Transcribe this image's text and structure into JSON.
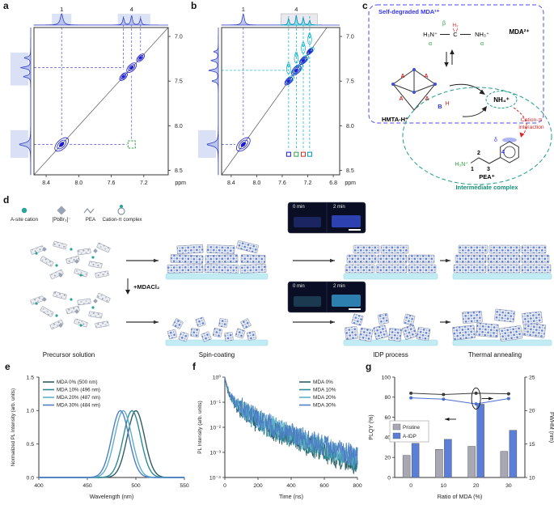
{
  "panel_labels": {
    "a": "a",
    "b": "b",
    "c": "c",
    "d": "d",
    "e": "e",
    "f": "f",
    "g": "g"
  },
  "nmr": {
    "a": {
      "xticks": [
        "8.4",
        "8.0",
        "7.6",
        "7.2"
      ],
      "yticks": [
        "7.0",
        "7.5",
        "8.0",
        "8.5"
      ],
      "unit": "ppm",
      "peak1": "1",
      "peak4": "4",
      "peak1_ppm": 8.21,
      "peak4_ppm": 7.35,
      "xrange": [
        8.55,
        6.9
      ],
      "yrange": [
        6.9,
        8.55
      ],
      "diagonal_peaks_ppm": [
        8.21,
        7.45,
        7.35,
        7.24
      ],
      "aromatic_ppm": [
        7.45,
        7.35,
        7.24
      ],
      "cross_peak": {
        "x_ppm": 7.35,
        "y_ppm": 8.21
      }
    },
    "b": {
      "xticks": [
        "8.4",
        "8.0",
        "7.6",
        "7.2",
        "6.8"
      ],
      "yticks": [
        "7.0",
        "7.5",
        "8.0",
        "8.5"
      ],
      "unit": "ppm",
      "peak1": "1",
      "peak4": "4",
      "peak1_ppm": 8.21,
      "peak4_ppm": 7.38,
      "xrange": [
        8.55,
        6.7
      ],
      "yrange": [
        6.9,
        8.55
      ],
      "diagonal_peaks_ppm": [
        8.21,
        7.5,
        7.38,
        7.27,
        7.17
      ],
      "aromatic_ppm": [
        7.5,
        7.38,
        7.27,
        7.17
      ],
      "cross_row_ppm": 8.32
    }
  },
  "panel_c": {
    "box_title": "Self-degraded MDA²⁺",
    "mda_left": "H₃N⁺",
    "mda_c": "C",
    "mda_h2": "H₂",
    "mda_right": "NH₃⁺",
    "alpha_left": "α",
    "beta": "β",
    "alpha_right": "α",
    "mda_label": "MDA²⁺",
    "hmta_label": "HMTA-H⁺",
    "a1": "A",
    "a2": "A",
    "a3": "A",
    "a4": "A",
    "b": "B",
    "h": "H",
    "nh4": "NH₄⁺",
    "cation_pi_1": "Cation-π",
    "cation_pi_2": "interaction",
    "delta": "δ",
    "num1": "1",
    "num2": "2",
    "num3": "3",
    "num4": "4",
    "pea_nh3": "H₃N⁺",
    "pea_label": "PEA⁺",
    "intermediate": "Intermediate complex"
  },
  "panel_d": {
    "legend": [
      {
        "label": "A-site cation"
      },
      {
        "label": "[PbBr₃]⁻"
      },
      {
        "label": "PEA"
      },
      {
        "label": "Cation-π complex"
      }
    ],
    "mdacl2": "+MDACl₂",
    "stages": [
      "Precursor solution",
      "Spin-coating",
      "IDP process",
      "Thermal annealing"
    ],
    "inset1": {
      "left": "0 min",
      "right": "2 min"
    },
    "inset2": {
      "left": "0 min",
      "right": "2 min"
    }
  },
  "chart_data": [
    {
      "id": "chart-e",
      "type": "line",
      "xlabel": "Wavelength (nm)",
      "ylabel": "Normalized PL Intensity (arb. units)",
      "xlim": [
        400,
        550
      ],
      "ylim": [
        0,
        1.5
      ],
      "x_ticks": [
        400,
        450,
        500,
        550
      ],
      "y_ticks": [
        0,
        0.5,
        1,
        1.5
      ],
      "legend_position": "top-left",
      "series": [
        {
          "name": "MDA 0% (500 nm)",
          "color": "#2f5d63",
          "peak_nm": 500,
          "fwhm_nm": 21,
          "amplitude": 1.0
        },
        {
          "name": "MDA 10% (496 nm)",
          "color": "#2c8c96",
          "peak_nm": 496,
          "fwhm_nm": 21,
          "amplitude": 1.0
        },
        {
          "name": "MDA 20% (487 nm)",
          "color": "#5fb0c9",
          "peak_nm": 487,
          "fwhm_nm": 21,
          "amplitude": 1.0
        },
        {
          "name": "MDA 30% (484 nm)",
          "color": "#4e7fc4",
          "peak_nm": 484,
          "fwhm_nm": 21,
          "amplitude": 1.0
        }
      ]
    },
    {
      "id": "chart-f",
      "type": "line-log",
      "xlabel": "Time (ns)",
      "ylabel": "PL Intensity (arb. units)",
      "xlim": [
        0,
        800
      ],
      "x_ticks": [
        0,
        200,
        400,
        600,
        800
      ],
      "ylog_ticks": [
        "10⁰",
        "10⁻¹",
        "10⁻²",
        "10⁻³",
        "10⁻⁴"
      ],
      "legend_position": "top-right",
      "series": [
        {
          "name": "MDA 0%",
          "color": "#2f5d63",
          "a1": 0.75,
          "t1": 9,
          "a2": 0.2,
          "t2": 45,
          "a3": 0.05,
          "t3": 150
        },
        {
          "name": "MDA 10%",
          "color": "#2c8c96",
          "a1": 0.75,
          "t1": 10,
          "a2": 0.2,
          "t2": 50,
          "a3": 0.05,
          "t3": 160
        },
        {
          "name": "MDA 20%",
          "color": "#5fb0c9",
          "a1": 0.75,
          "t1": 11,
          "a2": 0.2,
          "t2": 55,
          "a3": 0.05,
          "t3": 170
        },
        {
          "name": "MDA 30%",
          "color": "#4e7fc4",
          "a1": 0.75,
          "t1": 12,
          "a2": 0.2,
          "t2": 60,
          "a3": 0.05,
          "t3": 180
        }
      ]
    },
    {
      "id": "chart-g",
      "type": "bar",
      "xlabel": "Ratio of MDA (%)",
      "ylabel_left": "PLQY (%)",
      "ylabel_right": "FWHM (nm)",
      "categories": [
        "0",
        "10",
        "20",
        "30"
      ],
      "ylim_left": [
        0,
        100
      ],
      "y_ticks_left": [
        0,
        20,
        40,
        60,
        80,
        100
      ],
      "ylim_right": [
        10,
        25
      ],
      "y_ticks_right": [
        10,
        15,
        20,
        25
      ],
      "bar_series": [
        {
          "name": "Pristine",
          "color": "#a8a8b4",
          "values": [
            22,
            28,
            31,
            26
          ]
        },
        {
          "name": "A-IDP",
          "color": "#5b7fd8",
          "values": [
            34,
            38,
            73,
            47
          ]
        }
      ],
      "line_series": [
        {
          "name": "Pristine FWHM",
          "color": "#3c3c3c",
          "values": [
            22.6,
            22.4,
            22.6,
            22.5
          ]
        },
        {
          "name": "A-IDP FWHM",
          "color": "#4a6fd0",
          "values": [
            21.9,
            21.7,
            21.0,
            21.8
          ]
        }
      ]
    }
  ]
}
